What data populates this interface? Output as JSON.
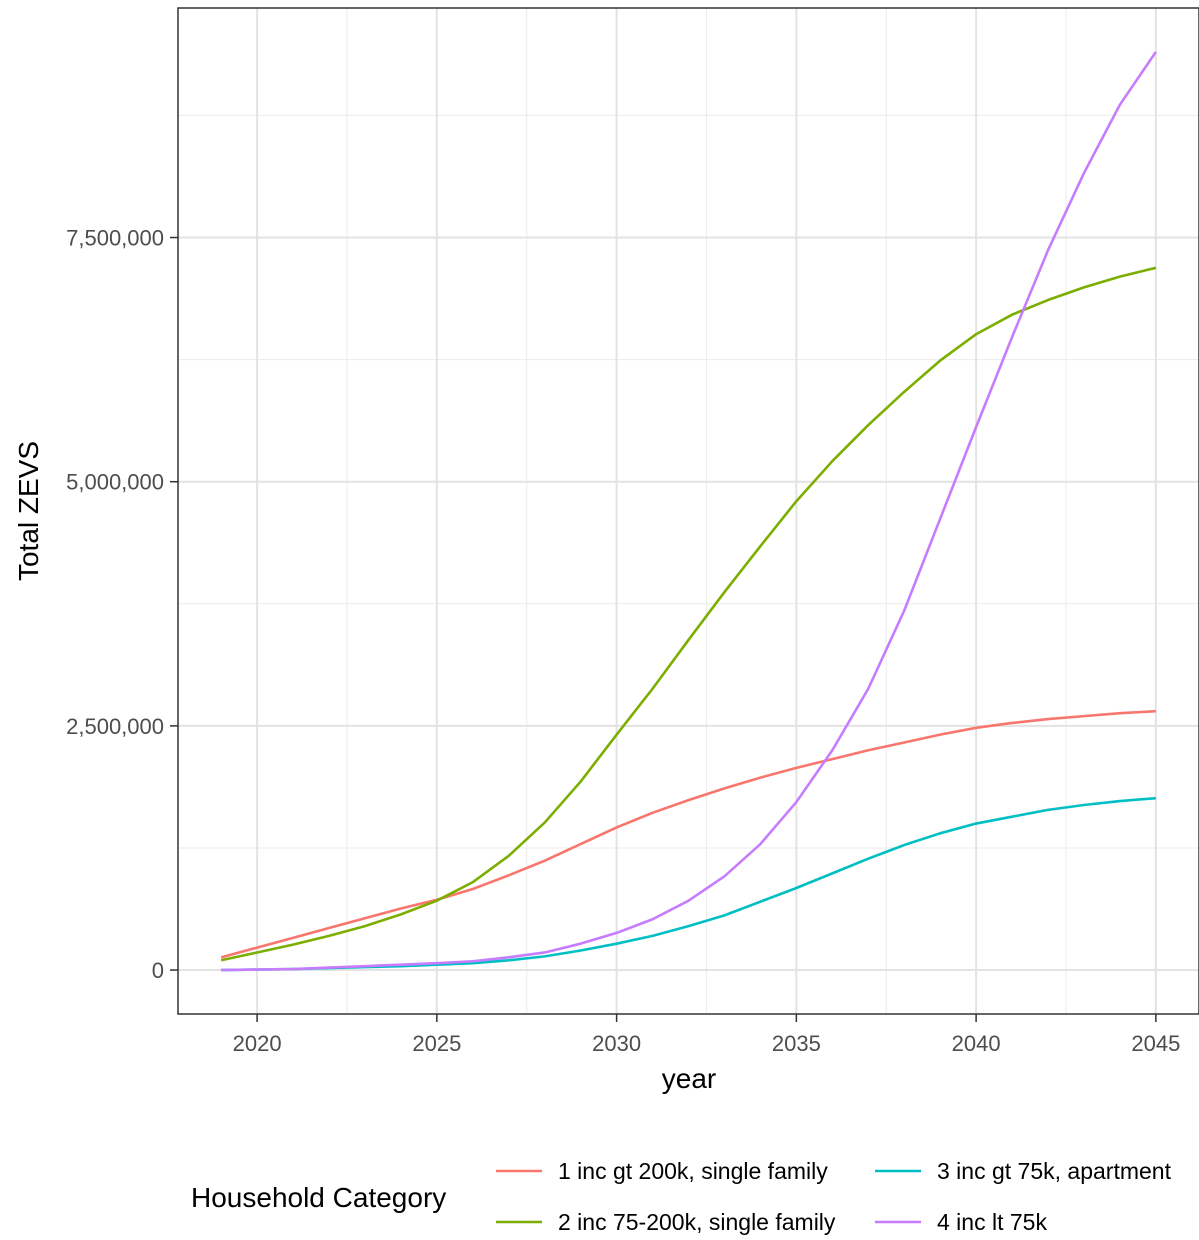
{
  "chart_data": {
    "type": "line",
    "xlabel": "year",
    "ylabel": "Total ZEVS",
    "xlim": [
      2017.8,
      2046.2
    ],
    "ylim": [
      -450000,
      9850000
    ],
    "x_ticks": [
      2020,
      2025,
      2030,
      2035,
      2040,
      2045
    ],
    "x_tick_labels": [
      "2020",
      "2025",
      "2030",
      "2035",
      "2040",
      "2045"
    ],
    "y_ticks": [
      0,
      2500000,
      5000000,
      7500000
    ],
    "y_tick_labels": [
      "0",
      "2,500,000",
      "5,000,000",
      "7,500,000"
    ],
    "grid": true,
    "legend_title": "Household Category",
    "legend_position": "bottom",
    "x": [
      2019,
      2020,
      2021,
      2022,
      2023,
      2024,
      2025,
      2026,
      2027,
      2028,
      2029,
      2030,
      2031,
      2032,
      2033,
      2034,
      2035,
      2036,
      2037,
      2038,
      2039,
      2040,
      2041,
      2042,
      2043,
      2044,
      2045
    ],
    "series": [
      {
        "name": "1 inc gt 200k, single family",
        "color": "#F8766D",
        "values": [
          130000,
          230000,
          330000,
          430000,
          530000,
          630000,
          720000,
          830000,
          970000,
          1120000,
          1290000,
          1460000,
          1610000,
          1740000,
          1860000,
          1970000,
          2070000,
          2160000,
          2250000,
          2330000,
          2410000,
          2480000,
          2530000,
          2570000,
          2600000,
          2630000,
          2650000
        ]
      },
      {
        "name": "2 inc 75-200k, single family",
        "color": "#7CAE00",
        "values": [
          100000,
          180000,
          260000,
          350000,
          450000,
          570000,
          710000,
          900000,
          1170000,
          1510000,
          1930000,
          2410000,
          2880000,
          3380000,
          3870000,
          4340000,
          4800000,
          5210000,
          5580000,
          5920000,
          6240000,
          6510000,
          6710000,
          6860000,
          6990000,
          7100000,
          7190000
        ]
      },
      {
        "name": "3 inc gt 75k, apartment",
        "color": "#00BFC4",
        "values": [
          0,
          5000,
          10000,
          20000,
          30000,
          40000,
          55000,
          70000,
          100000,
          140000,
          200000,
          270000,
          350000,
          450000,
          560000,
          700000,
          840000,
          990000,
          1140000,
          1280000,
          1400000,
          1500000,
          1570000,
          1640000,
          1690000,
          1730000,
          1760000
        ]
      },
      {
        "name": "4 inc lt 75k",
        "color": "#C77CFF",
        "values": [
          0,
          5000,
          10000,
          25000,
          40000,
          55000,
          70000,
          90000,
          130000,
          180000,
          270000,
          380000,
          520000,
          710000,
          960000,
          1290000,
          1720000,
          2250000,
          2880000,
          3680000,
          4620000,
          5560000,
          6480000,
          7370000,
          8160000,
          8860000,
          9400000
        ]
      }
    ]
  }
}
